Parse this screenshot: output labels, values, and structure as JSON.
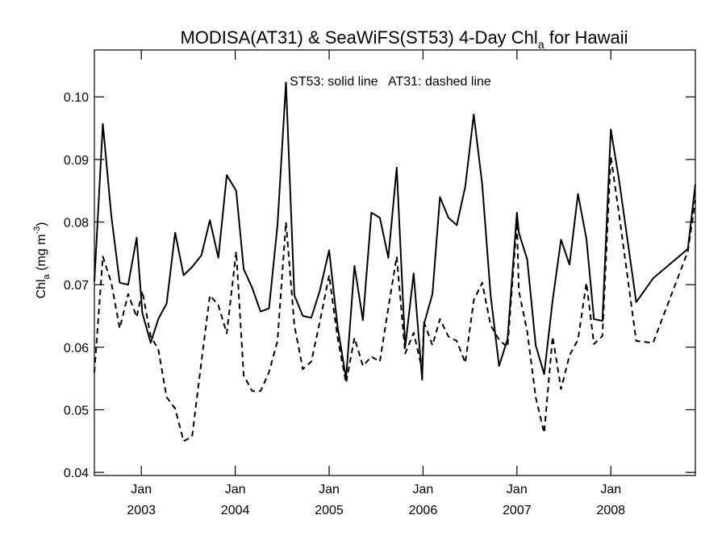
{
  "chart_data": {
    "type": "line",
    "title": {
      "main": "MODISA(AT31) & SeaWiFS(ST53) 4-Day Chl",
      "subscript": "a",
      "suffix": " for Hawaii"
    },
    "annotation": "ST53: solid line   AT31: dashed line",
    "ylabel": {
      "base": "Chl",
      "base_sub": "a",
      "unit": " (mg m",
      "unit_sup": "-3",
      "close": ")"
    },
    "xlim": [
      2002.5,
      2008.9
    ],
    "ylim": [
      0.0395,
      0.1075
    ],
    "yticks": [
      {
        "value": 0.04,
        "label": "0.04"
      },
      {
        "value": 0.05,
        "label": "0.05"
      },
      {
        "value": 0.06,
        "label": "0.06"
      },
      {
        "value": 0.07,
        "label": "0.07"
      },
      {
        "value": 0.08,
        "label": "0.08"
      },
      {
        "value": 0.09,
        "label": "0.09"
      },
      {
        "value": 0.1,
        "label": "0.10"
      }
    ],
    "xticks": [
      {
        "value": 2003,
        "month": "Jan",
        "year": "2003"
      },
      {
        "value": 2004,
        "month": "Jan",
        "year": "2004"
      },
      {
        "value": 2005,
        "month": "Jan",
        "year": "2005"
      },
      {
        "value": 2006,
        "month": "Jan",
        "year": "2006"
      },
      {
        "value": 2007,
        "month": "Jan",
        "year": "2007"
      },
      {
        "value": 2008,
        "month": "Jan",
        "year": "2008"
      }
    ],
    "series": [
      {
        "line_style": "solid",
        "points": [
          [
            2002.5,
            0.0705
          ],
          [
            2002.59,
            0.0957
          ],
          [
            2002.68,
            0.081
          ],
          [
            2002.77,
            0.0703
          ],
          [
            2002.86,
            0.07
          ],
          [
            2002.95,
            0.0775
          ],
          [
            2003.01,
            0.0655
          ],
          [
            2003.1,
            0.0607
          ],
          [
            2003.18,
            0.0645
          ],
          [
            2003.27,
            0.067
          ],
          [
            2003.36,
            0.0783
          ],
          [
            2003.45,
            0.0715
          ],
          [
            2003.54,
            0.0728
          ],
          [
            2003.64,
            0.0747
          ],
          [
            2003.73,
            0.0803
          ],
          [
            2003.82,
            0.0743
          ],
          [
            2003.91,
            0.0875
          ],
          [
            2004.01,
            0.085
          ],
          [
            2004.09,
            0.0725
          ],
          [
            2004.18,
            0.0695
          ],
          [
            2004.27,
            0.0657
          ],
          [
            2004.36,
            0.0662
          ],
          [
            2004.45,
            0.0795
          ],
          [
            2004.54,
            0.1023
          ],
          [
            2004.63,
            0.0683
          ],
          [
            2004.72,
            0.065
          ],
          [
            2004.81,
            0.0647
          ],
          [
            2004.9,
            0.069
          ],
          [
            2005.0,
            0.0755
          ],
          [
            2005.09,
            0.0633
          ],
          [
            2005.18,
            0.055
          ],
          [
            2005.27,
            0.073
          ],
          [
            2005.36,
            0.0643
          ],
          [
            2005.45,
            0.0815
          ],
          [
            2005.54,
            0.0807
          ],
          [
            2005.63,
            0.0743
          ],
          [
            2005.72,
            0.0887
          ],
          [
            2005.81,
            0.06
          ],
          [
            2005.9,
            0.0718
          ],
          [
            2005.99,
            0.0548
          ],
          [
            2006.01,
            0.0637
          ],
          [
            2006.1,
            0.0685
          ],
          [
            2006.18,
            0.084
          ],
          [
            2006.27,
            0.0807
          ],
          [
            2006.36,
            0.0795
          ],
          [
            2006.45,
            0.0857
          ],
          [
            2006.54,
            0.0972
          ],
          [
            2006.63,
            0.086
          ],
          [
            2006.72,
            0.0683
          ],
          [
            2006.81,
            0.057
          ],
          [
            2006.9,
            0.0613
          ],
          [
            2007.0,
            0.0815
          ],
          [
            2007.02,
            0.0783
          ],
          [
            2007.11,
            0.074
          ],
          [
            2007.2,
            0.0603
          ],
          [
            2007.29,
            0.0557
          ],
          [
            2007.38,
            0.0675
          ],
          [
            2007.47,
            0.0772
          ],
          [
            2007.56,
            0.0732
          ],
          [
            2007.65,
            0.0845
          ],
          [
            2007.74,
            0.0773
          ],
          [
            2007.82,
            0.0645
          ],
          [
            2007.91,
            0.0642
          ],
          [
            2008.0,
            0.0948
          ],
          [
            2008.09,
            0.0865
          ],
          [
            2008.27,
            0.0672
          ],
          [
            2008.45,
            0.071
          ],
          [
            2008.82,
            0.0757
          ],
          [
            2008.9,
            0.086
          ]
        ]
      },
      {
        "line_style": "dashed",
        "points": [
          [
            2002.5,
            0.056
          ],
          [
            2002.59,
            0.0745
          ],
          [
            2002.68,
            0.0703
          ],
          [
            2002.77,
            0.063
          ],
          [
            2002.86,
            0.0685
          ],
          [
            2002.95,
            0.0648
          ],
          [
            2003.01,
            0.069
          ],
          [
            2003.1,
            0.0617
          ],
          [
            2003.18,
            0.0597
          ],
          [
            2003.27,
            0.052
          ],
          [
            2003.36,
            0.0502
          ],
          [
            2003.45,
            0.045
          ],
          [
            2003.54,
            0.0457
          ],
          [
            2003.64,
            0.0577
          ],
          [
            2003.73,
            0.0683
          ],
          [
            2003.82,
            0.0667
          ],
          [
            2003.91,
            0.0622
          ],
          [
            2004.01,
            0.0753
          ],
          [
            2004.09,
            0.0555
          ],
          [
            2004.18,
            0.053
          ],
          [
            2004.27,
            0.053
          ],
          [
            2004.36,
            0.056
          ],
          [
            2004.45,
            0.061
          ],
          [
            2004.54,
            0.08
          ],
          [
            2004.63,
            0.0635
          ],
          [
            2004.72,
            0.0565
          ],
          [
            2004.81,
            0.0577
          ],
          [
            2004.9,
            0.064
          ],
          [
            2005.0,
            0.0715
          ],
          [
            2005.09,
            0.0615
          ],
          [
            2005.18,
            0.0543
          ],
          [
            2005.27,
            0.0615
          ],
          [
            2005.36,
            0.057
          ],
          [
            2005.45,
            0.0585
          ],
          [
            2005.54,
            0.0577
          ],
          [
            2005.63,
            0.0663
          ],
          [
            2005.72,
            0.0745
          ],
          [
            2005.81,
            0.059
          ],
          [
            2005.9,
            0.0623
          ],
          [
            2005.99,
            0.0565
          ],
          [
            2006.01,
            0.064
          ],
          [
            2006.1,
            0.0603
          ],
          [
            2006.18,
            0.0645
          ],
          [
            2006.27,
            0.0617
          ],
          [
            2006.36,
            0.061
          ],
          [
            2006.45,
            0.0575
          ],
          [
            2006.54,
            0.0675
          ],
          [
            2006.63,
            0.0703
          ],
          [
            2006.72,
            0.0635
          ],
          [
            2006.81,
            0.0612
          ],
          [
            2006.9,
            0.06
          ],
          [
            2007.0,
            0.08
          ],
          [
            2007.02,
            0.069
          ],
          [
            2007.11,
            0.0625
          ],
          [
            2007.2,
            0.052
          ],
          [
            2007.29,
            0.0463
          ],
          [
            2007.38,
            0.0617
          ],
          [
            2007.47,
            0.0533
          ],
          [
            2007.56,
            0.0587
          ],
          [
            2007.65,
            0.0612
          ],
          [
            2007.74,
            0.0703
          ],
          [
            2007.82,
            0.0605
          ],
          [
            2007.91,
            0.0618
          ],
          [
            2008.0,
            0.0905
          ],
          [
            2008.09,
            0.081
          ],
          [
            2008.27,
            0.061
          ],
          [
            2008.45,
            0.0607
          ],
          [
            2008.82,
            0.0753
          ],
          [
            2008.9,
            0.0835
          ]
        ]
      }
    ]
  }
}
